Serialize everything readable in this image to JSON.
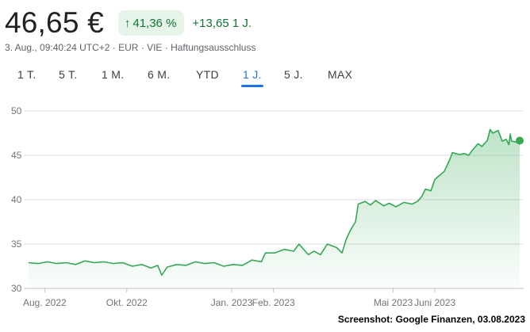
{
  "quote": {
    "price": "46,65 €",
    "change_pct": "41,36 %",
    "change_abs": "+13,65 1 J.",
    "meta": "3. Aug., 09:40:24 UTC+2 · EUR · VIE · Haftungsausschluss"
  },
  "ranges": [
    {
      "label": "1 T.",
      "active": false
    },
    {
      "label": "5 T.",
      "active": false
    },
    {
      "label": "1 M.",
      "active": false
    },
    {
      "label": "6 M.",
      "active": false
    },
    {
      "label": "YTD",
      "active": false
    },
    {
      "label": "1 J.",
      "active": true
    },
    {
      "label": "5 J.",
      "active": false
    },
    {
      "label": "MAX",
      "active": false
    }
  ],
  "colors": {
    "line": "#34a853",
    "fill": "#34a853",
    "active_tab": "#1a73e8",
    "pill_bg": "#e6f4ea",
    "positive_text": "#137333"
  },
  "chart_data": {
    "type": "area",
    "title": "",
    "xlabel": "",
    "ylabel": "",
    "ylim": [
      30,
      50
    ],
    "yticks": [
      30,
      35,
      40,
      45,
      50
    ],
    "xlim": [
      "2022-08-03",
      "2023-08-03"
    ],
    "xticks": [
      {
        "date": "2022-08-15",
        "label": "Aug. 2022"
      },
      {
        "date": "2022-10-15",
        "label": "Okt. 2022"
      },
      {
        "date": "2023-01-01",
        "label": "Jan. 2023"
      },
      {
        "date": "2023-02-01",
        "label": "Feb. 2023"
      },
      {
        "date": "2023-05-01",
        "label": "Mai 2023"
      },
      {
        "date": "2023-06-01",
        "label": "Juni 2023"
      }
    ],
    "grid": true,
    "series": [
      {
        "points": [
          [
            "2022-08-03",
            32.9
          ],
          [
            "2022-08-10",
            32.8
          ],
          [
            "2022-08-17",
            33.0
          ],
          [
            "2022-08-24",
            32.8
          ],
          [
            "2022-08-31",
            32.9
          ],
          [
            "2022-09-07",
            32.7
          ],
          [
            "2022-09-14",
            33.1
          ],
          [
            "2022-09-21",
            32.9
          ],
          [
            "2022-09-28",
            33.0
          ],
          [
            "2022-10-05",
            32.8
          ],
          [
            "2022-10-12",
            32.9
          ],
          [
            "2022-10-19",
            32.5
          ],
          [
            "2022-10-26",
            32.7
          ],
          [
            "2022-11-02",
            32.3
          ],
          [
            "2022-11-07",
            32.6
          ],
          [
            "2022-11-10",
            31.5
          ],
          [
            "2022-11-14",
            32.4
          ],
          [
            "2022-11-21",
            32.7
          ],
          [
            "2022-11-28",
            32.6
          ],
          [
            "2022-12-05",
            33.0
          ],
          [
            "2022-12-12",
            32.8
          ],
          [
            "2022-12-19",
            32.9
          ],
          [
            "2022-12-26",
            32.5
          ],
          [
            "2023-01-02",
            32.7
          ],
          [
            "2023-01-09",
            32.6
          ],
          [
            "2023-01-16",
            33.2
          ],
          [
            "2023-01-23",
            33.0
          ],
          [
            "2023-01-26",
            34.0
          ],
          [
            "2023-02-02",
            34.0
          ],
          [
            "2023-02-09",
            34.4
          ],
          [
            "2023-02-16",
            34.2
          ],
          [
            "2023-02-20",
            35.0
          ],
          [
            "2023-02-27",
            33.8
          ],
          [
            "2023-03-03",
            34.2
          ],
          [
            "2023-03-08",
            33.8
          ],
          [
            "2023-03-13",
            35.0
          ],
          [
            "2023-03-20",
            34.6
          ],
          [
            "2023-03-24",
            34.0
          ],
          [
            "2023-03-27",
            35.5
          ],
          [
            "2023-03-30",
            36.5
          ],
          [
            "2023-04-03",
            37.5
          ],
          [
            "2023-04-05",
            39.5
          ],
          [
            "2023-04-10",
            39.8
          ],
          [
            "2023-04-14",
            39.4
          ],
          [
            "2023-04-18",
            39.9
          ],
          [
            "2023-04-24",
            39.3
          ],
          [
            "2023-04-28",
            39.6
          ],
          [
            "2023-05-03",
            39.2
          ],
          [
            "2023-05-09",
            39.7
          ],
          [
            "2023-05-15",
            39.5
          ],
          [
            "2023-05-19",
            39.8
          ],
          [
            "2023-05-22",
            40.3
          ],
          [
            "2023-05-25",
            41.2
          ],
          [
            "2023-05-29",
            41.0
          ],
          [
            "2023-06-01",
            42.3
          ],
          [
            "2023-06-05",
            42.8
          ],
          [
            "2023-06-08",
            43.2
          ],
          [
            "2023-06-12",
            44.5
          ],
          [
            "2023-06-14",
            45.3
          ],
          [
            "2023-06-19",
            45.1
          ],
          [
            "2023-06-23",
            45.2
          ],
          [
            "2023-06-26",
            45.0
          ],
          [
            "2023-06-29",
            45.6
          ],
          [
            "2023-07-03",
            46.3
          ],
          [
            "2023-07-06",
            46.0
          ],
          [
            "2023-07-10",
            46.7
          ],
          [
            "2023-07-12",
            47.9
          ],
          [
            "2023-07-14",
            47.5
          ],
          [
            "2023-07-18",
            47.8
          ],
          [
            "2023-07-21",
            46.6
          ],
          [
            "2023-07-24",
            46.8
          ],
          [
            "2023-07-26",
            46.2
          ],
          [
            "2023-07-27",
            47.4
          ],
          [
            "2023-07-28",
            46.6
          ],
          [
            "2023-07-31",
            46.5
          ],
          [
            "2023-08-03",
            46.65
          ]
        ]
      }
    ]
  },
  "footer": {
    "credit": "Screenshot: Google Finanzen, 03.08.2023"
  }
}
